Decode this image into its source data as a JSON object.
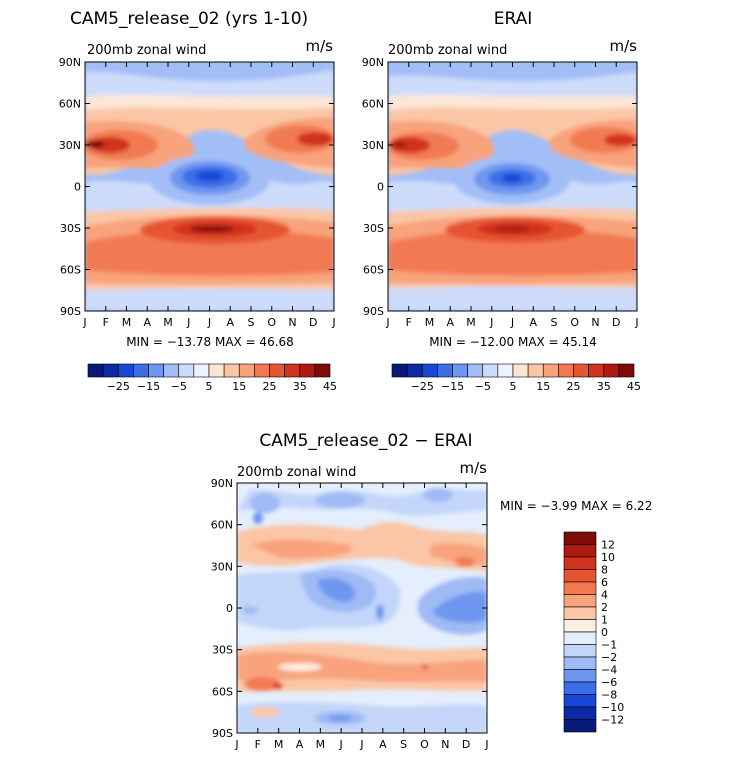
{
  "months": [
    "J",
    "F",
    "M",
    "A",
    "M",
    "J",
    "J",
    "A",
    "S",
    "O",
    "N",
    "D",
    "J"
  ],
  "lat_labels": [
    "90N",
    "60N",
    "30N",
    "0",
    "30S",
    "60S",
    "90S"
  ],
  "chart_data": [
    {
      "type": "heatmap",
      "title": "CAM5_release_02 (yrs 1-10)",
      "subtitle": "200mb zonal wind",
      "units": "m/s",
      "stats": "MIN = −13.78 MAX =  46.68",
      "min": -13.78,
      "max": 46.68,
      "x_domain": [
        0,
        12
      ],
      "y_domain": [
        -90,
        90
      ],
      "colorbar_labels": [
        "−25",
        "−15",
        "−5",
        "5",
        "15",
        "25",
        "35",
        "45"
      ]
    },
    {
      "type": "heatmap",
      "title": "ERAI",
      "subtitle": "200mb zonal wind",
      "units": "m/s",
      "stats": "MIN = −12.00 MAX =  45.14",
      "min": -12.0,
      "max": 45.14,
      "x_domain": [
        0,
        12
      ],
      "y_domain": [
        -90,
        90
      ],
      "colorbar_labels": [
        "−25",
        "−15",
        "−5",
        "5",
        "15",
        "25",
        "35",
        "45"
      ]
    },
    {
      "type": "heatmap",
      "title": "CAM5_release_02 − ERAI",
      "subtitle": "200mb zonal wind",
      "units": "m/s",
      "stats": "MIN =   −3.99 MAX =    6.22",
      "min": -3.99,
      "max": 6.22,
      "x_domain": [
        0,
        12
      ],
      "y_domain": [
        -90,
        90
      ],
      "colorbar_labels": [
        "12",
        "10",
        "8",
        "6",
        "4",
        "2",
        "1",
        "0",
        "−1",
        "−2",
        "−4",
        "−6",
        "−8",
        "−10",
        "−12"
      ]
    }
  ],
  "colors": {
    "top_scale": [
      "#081a78",
      "#0a2aa6",
      "#1946d6",
      "#3a6ee8",
      "#6e97f0",
      "#a3bef7",
      "#cddcfa",
      "#eef4fd",
      "#fde6d6",
      "#fbc6a6",
      "#f8a37c",
      "#f27a52",
      "#e65430",
      "#d1321b",
      "#ac1a10",
      "#7e0b08"
    ],
    "diff_scale": [
      "#7e0b08",
      "#ac1a10",
      "#d1321b",
      "#e65430",
      "#f27a52",
      "#f8a37c",
      "#fbc6a6",
      "#fdeee2",
      "#e4eefc",
      "#c3d6fa",
      "#9fbaf5",
      "#6e97f0",
      "#3a6ee8",
      "#1946d6",
      "#0a2aa6",
      "#081a78"
    ]
  }
}
